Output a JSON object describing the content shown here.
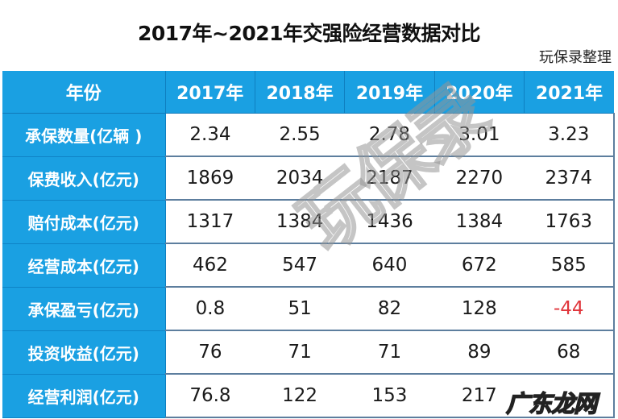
{
  "title": "2017年~2021年交强险经营数据对比",
  "source": "玩保录整理",
  "table": {
    "corner_header": "年份",
    "years": [
      "2017年",
      "2018年",
      "2019年",
      "2020年",
      "2021年"
    ],
    "rows": [
      {
        "label": "承保数量(亿辆 )",
        "values": [
          "2.34",
          "2.55",
          "2.78",
          "3.01",
          "3.23"
        ]
      },
      {
        "label": "保费收入(亿元)",
        "values": [
          "1869",
          "2034",
          "2187",
          "2270",
          "2374"
        ]
      },
      {
        "label": "赔付成本(亿元)",
        "values": [
          "1317",
          "1384",
          "1436",
          "1384",
          "1763"
        ]
      },
      {
        "label": "经营成本(亿元)",
        "values": [
          "462",
          "547",
          "640",
          "672",
          "585"
        ]
      },
      {
        "label": "承保盈亏(亿元)",
        "values": [
          "0.8",
          "51",
          "82",
          "128",
          "-44"
        ]
      },
      {
        "label": "投资收益(亿元)",
        "values": [
          "76",
          "71",
          "71",
          "89",
          "68"
        ]
      },
      {
        "label": "经营利润(亿元)",
        "values": [
          "76.8",
          "122",
          "153",
          "217",
          ""
        ]
      }
    ]
  },
  "watermarks": {
    "center": "玩保录",
    "corner": "广东龙网"
  },
  "colors": {
    "header_bg": "#1aa0e2",
    "header_text": "#ffffff",
    "negative": "#e0353b",
    "grid": "#5d7e9e"
  }
}
